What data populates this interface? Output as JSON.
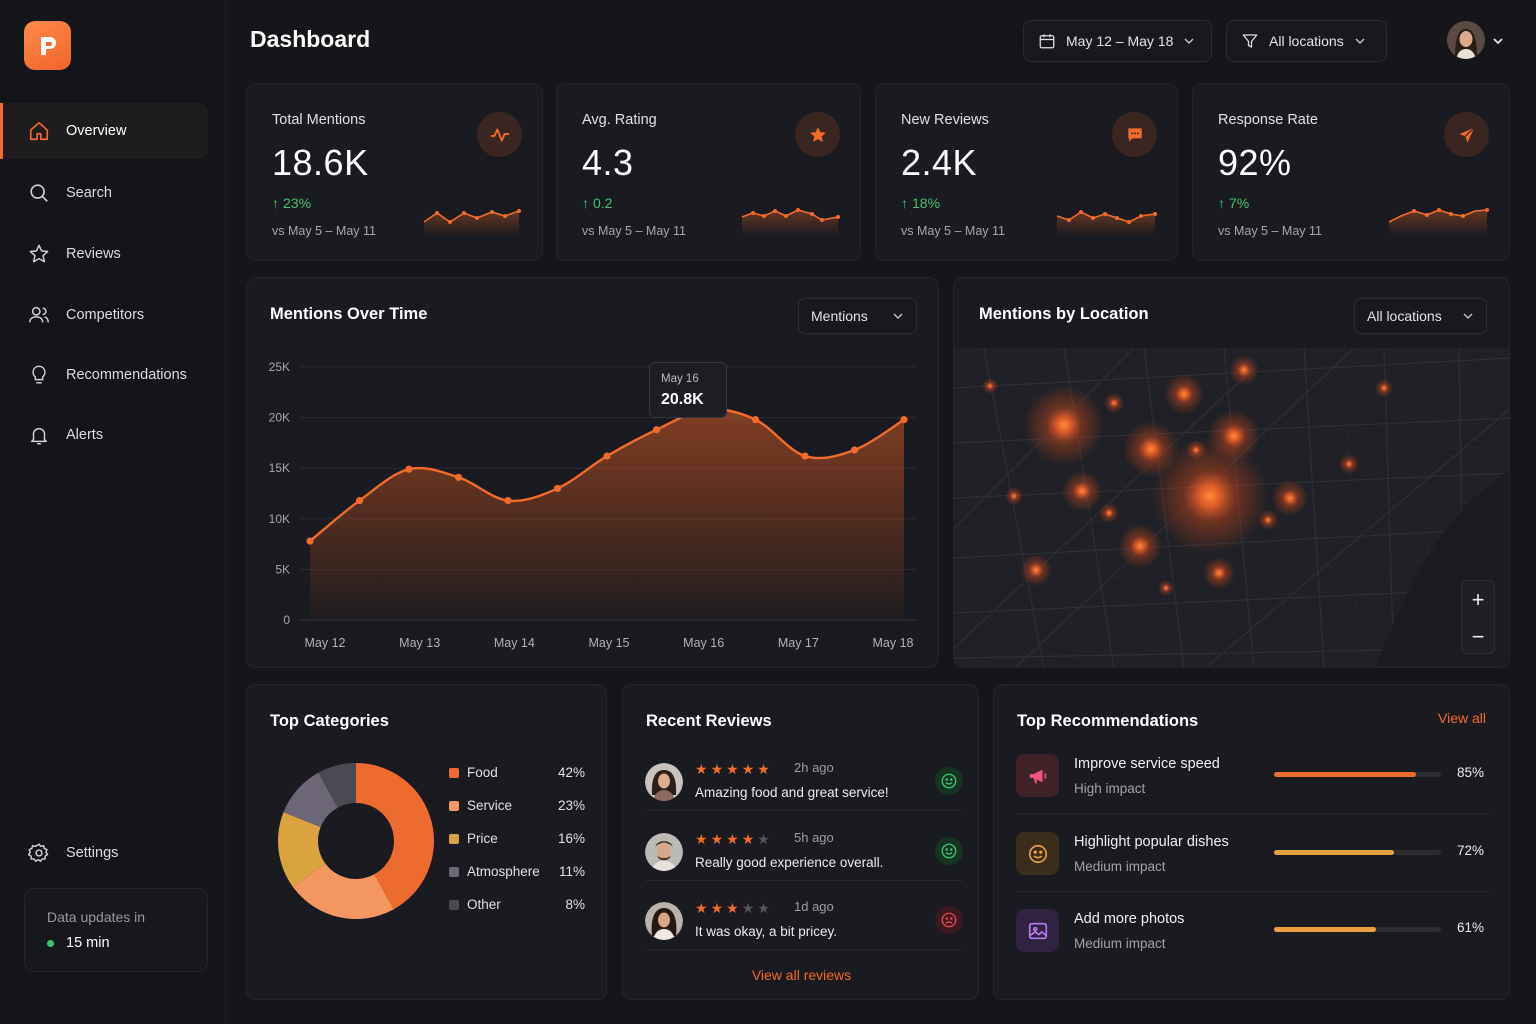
{
  "header": {
    "title": "Dashboard",
    "date_range": "May 12 – May 18",
    "location_filter": "All locations"
  },
  "sidebar": {
    "items": [
      {
        "label": "Overview",
        "icon": "home-icon"
      },
      {
        "label": "Search",
        "icon": "search-icon"
      },
      {
        "label": "Reviews",
        "icon": "star-icon"
      },
      {
        "label": "Competitors",
        "icon": "users-icon"
      },
      {
        "label": "Recommendations",
        "icon": "lightbulb-icon"
      },
      {
        "label": "Alerts",
        "icon": "bell-icon"
      }
    ],
    "settings_label": "Settings",
    "updates_label": "Data updates in",
    "updates_value": "15 min"
  },
  "kpis": [
    {
      "title": "Total Mentions",
      "value": "18.6K",
      "delta": "23%",
      "compare": "vs May 5 – May 11",
      "icon": "activity-icon"
    },
    {
      "title": "Avg. Rating",
      "value": "4.3",
      "delta": "0.2",
      "compare": "vs May 5 – May 11",
      "icon": "star-icon"
    },
    {
      "title": "New Reviews",
      "value": "2.4K",
      "delta": "18%",
      "compare": "vs May 5 – May 11",
      "icon": "message-icon"
    },
    {
      "title": "Response Rate",
      "value": "92%",
      "delta": "7%",
      "compare": "vs May 5 – May 11",
      "icon": "send-icon"
    }
  ],
  "mentions_chart": {
    "title": "Mentions Over Time",
    "selector": "Mentions",
    "tooltip_date": "May 16",
    "tooltip_value": "20.8K"
  },
  "location_map": {
    "title": "Mentions by Location",
    "selector": "All locations",
    "zoom_in": "+",
    "zoom_out": "−"
  },
  "categories": {
    "title": "Top Categories",
    "items": [
      {
        "label": "Food",
        "pct": "42%",
        "value": 42,
        "color": "#ee6b2f"
      },
      {
        "label": "Service",
        "pct": "23%",
        "value": 23,
        "color": "#f39660"
      },
      {
        "label": "Price",
        "pct": "16%",
        "value": 16,
        "color": "#dba240"
      },
      {
        "label": "Atmosphere",
        "pct": "11%",
        "value": 11,
        "color": "#6c6677"
      },
      {
        "label": "Other",
        "pct": "8%",
        "value": 8,
        "color": "#4a4a52"
      }
    ]
  },
  "reviews": {
    "title": "Recent Reviews",
    "items": [
      {
        "stars": 5,
        "time": "2h ago",
        "text": "Amazing food and great service!",
        "sentiment": "positive"
      },
      {
        "stars": 3.5,
        "time": "5h ago",
        "text": "Really good experience overall.",
        "sentiment": "positive"
      },
      {
        "stars": 3,
        "time": "1d ago",
        "text": "It was okay, a bit pricey.",
        "sentiment": "negative"
      }
    ],
    "view_all": "View all reviews"
  },
  "recommendations": {
    "title": "Top Recommendations",
    "view_all": "View all",
    "items": [
      {
        "title": "Improve service speed",
        "impact": "High impact",
        "pct": "85%",
        "value": 0.85,
        "color": "#ee6b2f",
        "icon": "megaphone-icon"
      },
      {
        "title": "Highlight popular dishes",
        "impact": "Medium impact",
        "pct": "72%",
        "value": 0.72,
        "color": "#e9a140",
        "icon": "smile-icon"
      },
      {
        "title": "Add more photos",
        "impact": "Medium impact",
        "pct": "61%",
        "value": 0.61,
        "color": "#e9a140",
        "icon": "image-icon"
      }
    ]
  },
  "chart_data": {
    "type": "area",
    "x": [
      "May 12",
      "",
      "May 13",
      "",
      "May 14",
      "",
      "May 15",
      "",
      "May 16",
      "",
      "May 17",
      "",
      "May 18"
    ],
    "categories": [
      "May 12",
      "May 13",
      "May 14",
      "May 15",
      "May 16",
      "May 17",
      "May 18"
    ],
    "series": [
      {
        "values": [
          7800,
          11800,
          14900,
          14100,
          11800,
          13000,
          16200,
          18800,
          20800,
          19800,
          16200,
          16800,
          19800
        ]
      }
    ],
    "yticks": [
      "0",
      "5K",
      "10K",
      "15K",
      "20K",
      "25K"
    ],
    "ylim": [
      0,
      25000
    ],
    "grid": true
  }
}
